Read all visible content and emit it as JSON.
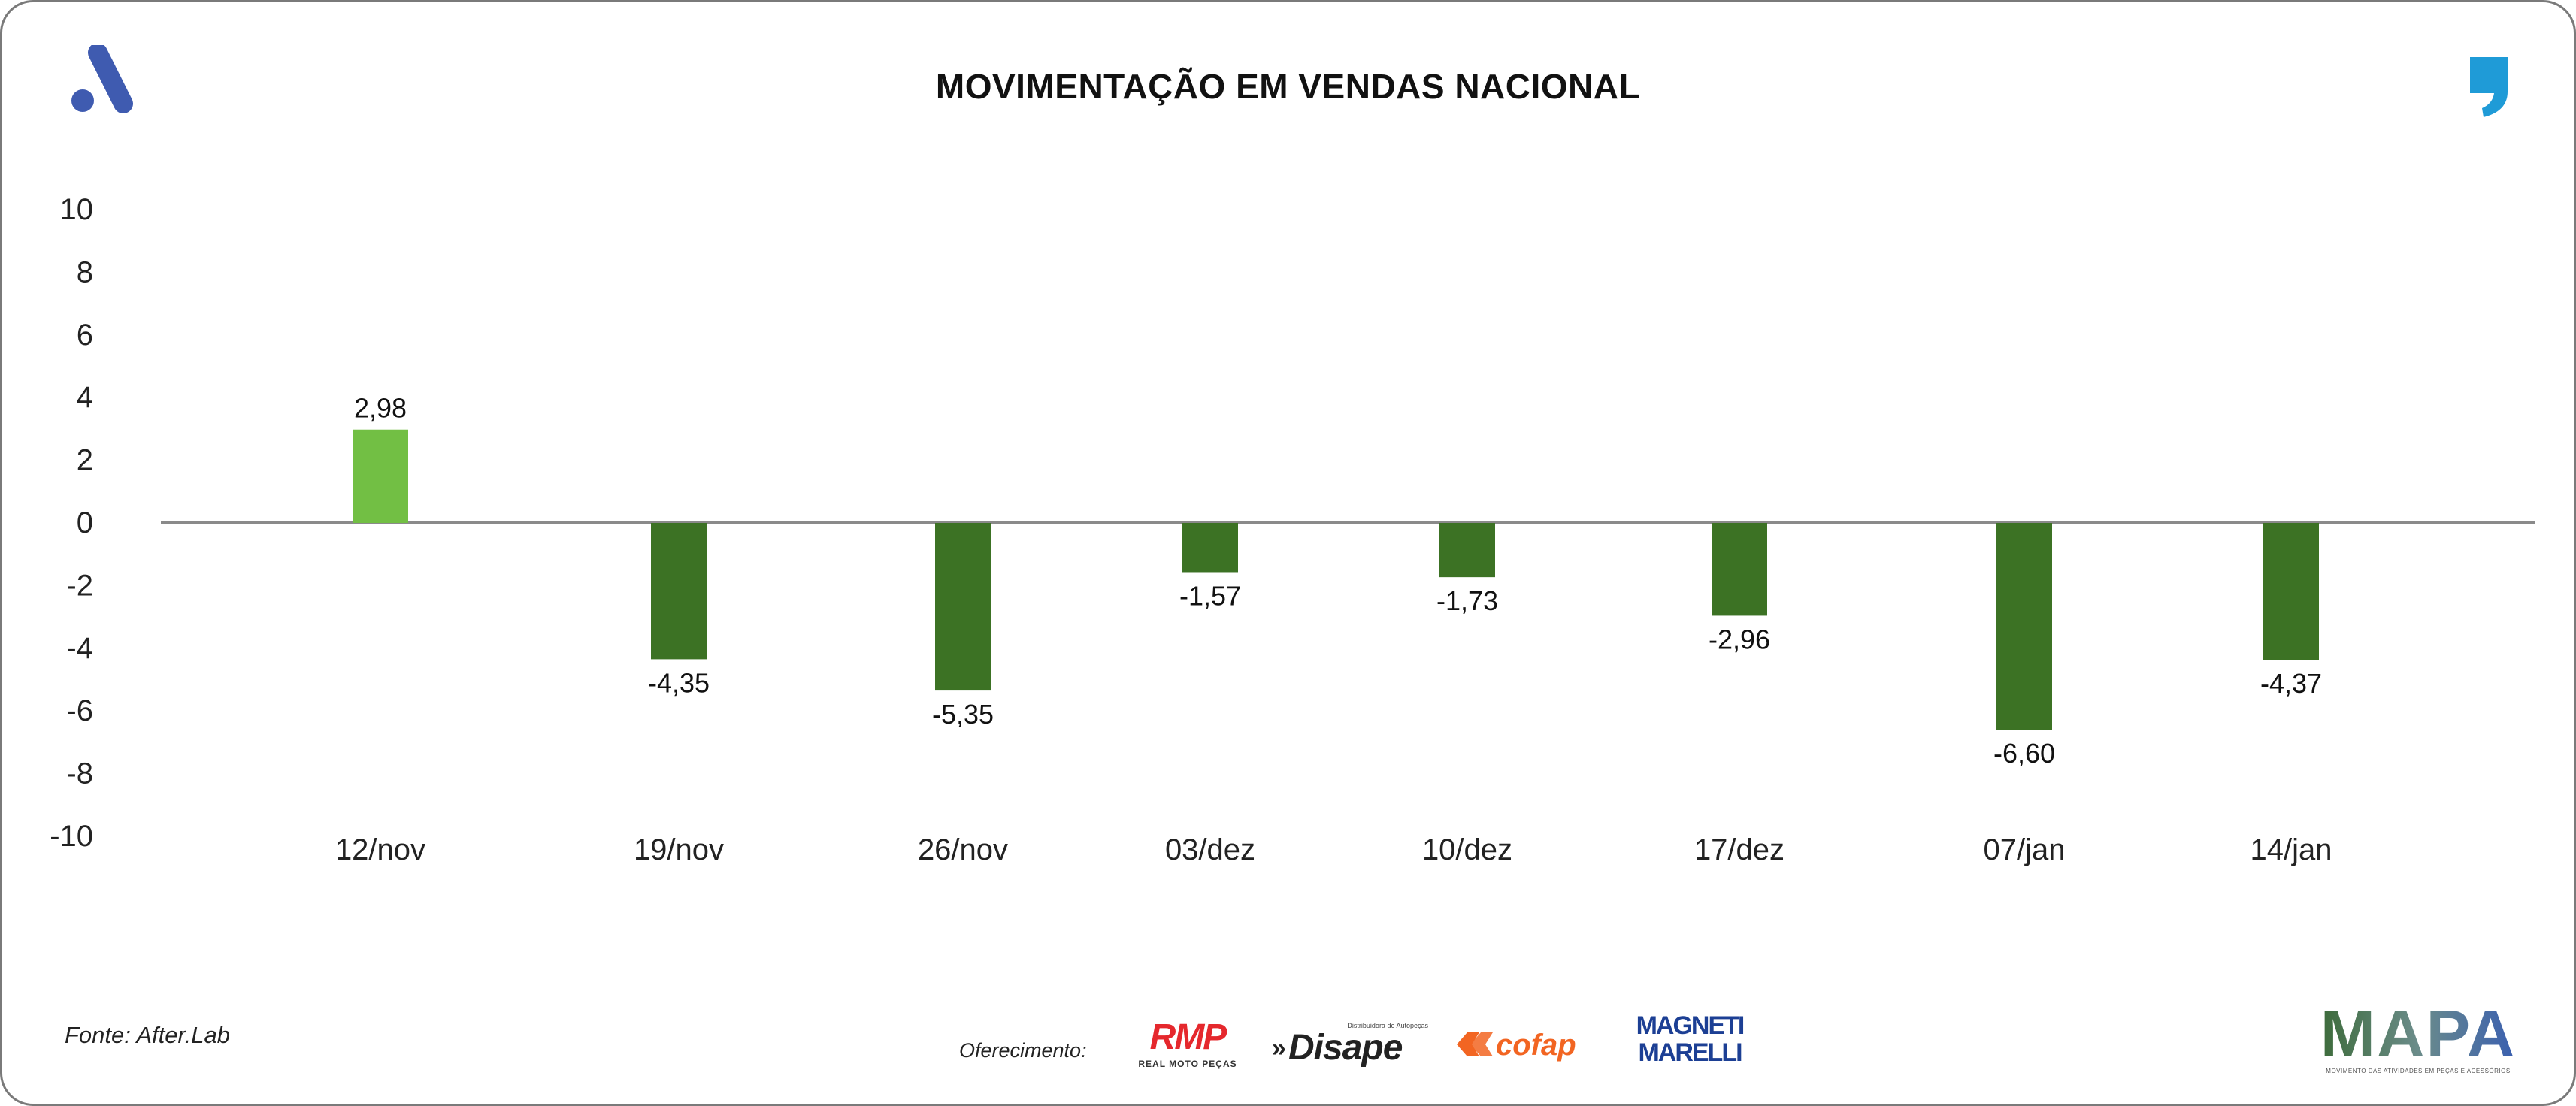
{
  "title": "MOVIMENTAÇÃO EM VENDAS NACIONAL",
  "source": "Fonte: After.Lab",
  "sponsors": {
    "label": "Oferecimento:",
    "rmp_text": "RMP",
    "rmp_sub": "REAL MOTO PEÇAS",
    "disape_text": "Disape",
    "disape_sub": "Distribuidora de Autopeças",
    "cofap_text": "cofap",
    "magneti_line1": "MAGNETI",
    "magneti_line2": "MARELLI"
  },
  "mapa": {
    "text": "MAPA",
    "sub": "MOVIMENTO DAS ATIVIDADES EM PEÇAS E ACESSÓRIOS"
  },
  "icons": {
    "brand": "brand-a-logo",
    "quote": "quote-mark-icon"
  },
  "colors": {
    "positive": "#72bf44",
    "negative": "#3c7224",
    "zero_line": "#8a8a8a",
    "brand_blue": "#3f5bb0",
    "quote_blue": "#1f9bd7",
    "rmp_red": "#e5282d",
    "cofap_orange": "#f26522",
    "magneti_blue": "#1c3f94"
  },
  "chart_data": {
    "type": "bar",
    "title": "MOVIMENTAÇÃO EM VENDAS NACIONAL",
    "categories": [
      "12/nov",
      "19/nov",
      "26/nov",
      "03/dez",
      "10/dez",
      "17/dez",
      "07/jan",
      "14/jan"
    ],
    "values": [
      2.98,
      -4.35,
      -5.35,
      -1.57,
      -1.73,
      -2.96,
      -6.6,
      -4.37
    ],
    "value_labels": [
      "2,98",
      "-4,35",
      "-5,35",
      "-1,57",
      "-1,73",
      "-2,96",
      "-6,60",
      "-4,37"
    ],
    "ylim": [
      -10,
      10
    ],
    "yticks": [
      10,
      8,
      6,
      4,
      2,
      0,
      -2,
      -4,
      -6,
      -8,
      -10
    ],
    "ytick_labels": [
      "10",
      "8",
      "6",
      "4",
      "2",
      "0",
      "-2",
      "-4",
      "-6",
      "-8",
      "-10"
    ],
    "xlabel": "",
    "ylabel": "",
    "grid": false,
    "legend": "none"
  }
}
